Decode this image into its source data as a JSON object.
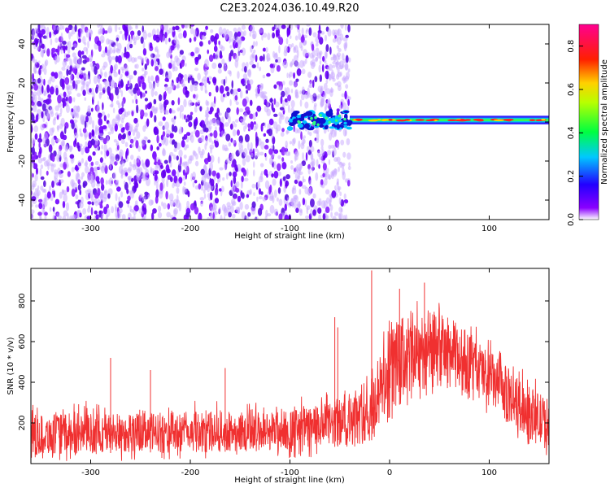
{
  "title": "C2E3.2024.036.10.49.R20",
  "colors": {
    "noise": "#6a00ff",
    "snr_line": "#f03030",
    "background": "#ffffff"
  },
  "chart_data": [
    {
      "type": "heatmap",
      "xlabel": "Height of straight line (km)",
      "ylabel": "Frequency (Hz)",
      "xlim": [
        -360,
        160
      ],
      "ylim": [
        -50,
        50
      ],
      "xticks": [
        -300,
        -200,
        -100,
        0,
        100
      ],
      "xtick_labels": [
        "-300",
        "-200",
        "-100",
        "0",
        "100"
      ],
      "yticks": [
        -40,
        -20,
        0,
        20,
        40
      ],
      "ytick_labels": [
        "-40",
        "-20",
        "0",
        "20",
        "40"
      ],
      "colorbar": {
        "label": "Normalized spectral amplitude",
        "range": [
          0,
          0.9
        ],
        "ticks": [
          0.0,
          0.2,
          0.4,
          0.6,
          0.8
        ],
        "tick_labels": [
          "0.0",
          "0.2",
          "0.4",
          "0.6",
          "0.8"
        ],
        "colormap": "rainbow (violet-blue-cyan-green-yellow-red-magenta)"
      },
      "features": {
        "noise_region_x": [
          -360,
          -40
        ],
        "signal_ridge_x": [
          -100,
          160
        ],
        "signal_ridge_frequency": 1
      }
    },
    {
      "type": "line",
      "xlabel": "Height of straight line (km)",
      "ylabel": "SNR (10 * v/v)",
      "xlim": [
        -360,
        160
      ],
      "ylim": [
        0,
        960
      ],
      "xticks": [
        -300,
        -200,
        -100,
        0,
        100
      ],
      "xtick_labels": [
        "-300",
        "-200",
        "-100",
        "0",
        "100"
      ],
      "yticks": [
        200,
        400,
        600,
        800
      ],
      "ytick_labels": [
        "200",
        "400",
        "600",
        "800"
      ],
      "series": [
        {
          "color": "#f03030",
          "envelope": {
            "x": [
              -360,
              -300,
              -250,
              -200,
              -150,
              -100,
              -80,
              -60,
              -40,
              -20,
              0,
              20,
              40,
              60,
              80,
              100,
              120,
              140,
              160
            ],
            "lower": [
              40,
              50,
              55,
              55,
              60,
              65,
              70,
              80,
              90,
              100,
              250,
              330,
              380,
              370,
              340,
              280,
              200,
              120,
              60
            ],
            "upper": [
              240,
              250,
              250,
              255,
              255,
              265,
              280,
              300,
              330,
              380,
              680,
              750,
              760,
              720,
              650,
              560,
              460,
              380,
              320
            ]
          },
          "spikes": [
            {
              "x": -18,
              "y": 950
            },
            {
              "x": -55,
              "y": 720
            },
            {
              "x": -52,
              "y": 670
            },
            {
              "x": 35,
              "y": 890
            },
            {
              "x": 10,
              "y": 860
            },
            {
              "x": -280,
              "y": 520
            },
            {
              "x": -240,
              "y": 460
            },
            {
              "x": -165,
              "y": 470
            }
          ]
        }
      ]
    }
  ]
}
